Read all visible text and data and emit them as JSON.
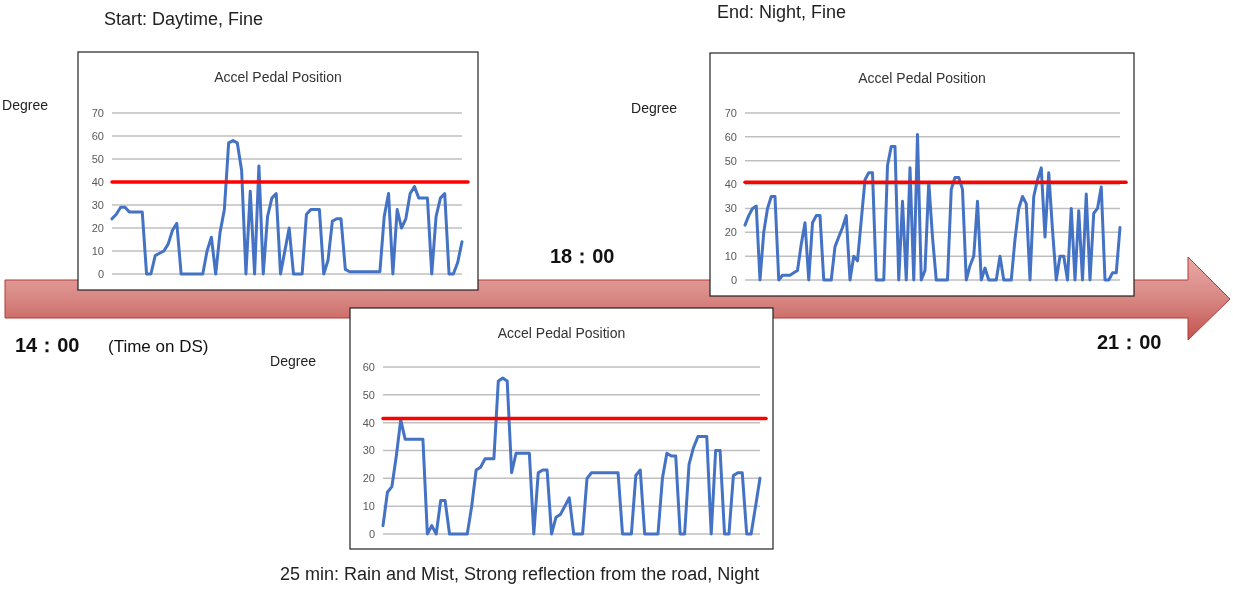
{
  "chart_data": [
    {
      "type": "line",
      "title": "Accel Pedal Position",
      "ylabel": "Degree",
      "annotations": [
        "Start: Daytime, Fine"
      ],
      "ylim": [
        0,
        70
      ],
      "yticks": [
        0,
        10,
        20,
        30,
        40,
        50,
        60,
        70
      ],
      "grid": "y",
      "tick_labels": "y",
      "line_style": "solid",
      "marker": "none",
      "categories": [
        null,
        null,
        null,
        null,
        null,
        null,
        null,
        null,
        null,
        null,
        null,
        null,
        null,
        null,
        null,
        null,
        null,
        null,
        null,
        null,
        null,
        null,
        null,
        null,
        null,
        null,
        null,
        null,
        null,
        null,
        null,
        null,
        null,
        null,
        null,
        null,
        null,
        null,
        null,
        null,
        null,
        null,
        null,
        null,
        null,
        null,
        null,
        null,
        null,
        null,
        null,
        null,
        null,
        null,
        null,
        null,
        null,
        null,
        null,
        null,
        null,
        null,
        null,
        null,
        null,
        null,
        null,
        null,
        null,
        null,
        null,
        null,
        null,
        null,
        null,
        null,
        null,
        null,
        null,
        null,
        null,
        null
      ],
      "series": [
        {
          "color": "#4472c4",
          "values": [
            24,
            26,
            29,
            29,
            27,
            27,
            27,
            27,
            0,
            0,
            8,
            9,
            10,
            13,
            19,
            22,
            0,
            0,
            0,
            0,
            0,
            0,
            10,
            16,
            0,
            18,
            28,
            57,
            58,
            57,
            45,
            0,
            36,
            0,
            47,
            0,
            25,
            33,
            35,
            0,
            10,
            20,
            0,
            0,
            0,
            26,
            28,
            28,
            28,
            0,
            6,
            23,
            24,
            24,
            2,
            1,
            1,
            1,
            1,
            1,
            1,
            1,
            1,
            25,
            35,
            0,
            28,
            20,
            24,
            35,
            38,
            33,
            33,
            33,
            0,
            25,
            33,
            35,
            0,
            0,
            5,
            14
          ]
        }
      ],
      "ref_lines": [
        {
          "axis": "y",
          "value": 40,
          "color": "#ff0000"
        }
      ]
    },
    {
      "type": "line",
      "title": "Accel Pedal Position",
      "ylabel": "Degree",
      "annotations": [
        "End: Night, Fine"
      ],
      "ylim": [
        0,
        70
      ],
      "yticks": [
        0,
        10,
        20,
        30,
        40,
        50,
        60,
        70
      ],
      "grid": "y",
      "tick_labels": "y",
      "line_style": "solid",
      "marker": "none",
      "categories": [
        null,
        null,
        null,
        null,
        null,
        null,
        null,
        null,
        null,
        null,
        null,
        null,
        null,
        null,
        null,
        null,
        null,
        null,
        null,
        null,
        null,
        null,
        null,
        null,
        null,
        null,
        null,
        null,
        null,
        null,
        null,
        null,
        null,
        null,
        null,
        null,
        null,
        null,
        null,
        null,
        null,
        null,
        null,
        null,
        null,
        null,
        null,
        null,
        null,
        null,
        null,
        null,
        null,
        null,
        null,
        null,
        null,
        null,
        null,
        null,
        null,
        null,
        null,
        null,
        null,
        null,
        null,
        null,
        null,
        null,
        null,
        null,
        null,
        null,
        null,
        null,
        null,
        null,
        null,
        null,
        null,
        null,
        null,
        null,
        null,
        null,
        null,
        null,
        null,
        null,
        null,
        null,
        null,
        null,
        null,
        null,
        null,
        null,
        null,
        null,
        null
      ],
      "series": [
        {
          "color": "#4472c4",
          "values": [
            23,
            27,
            30,
            31,
            0,
            20,
            30,
            35,
            35,
            0,
            2,
            2,
            2,
            3,
            4,
            15,
            24,
            0,
            24,
            27,
            27,
            0,
            0,
            0,
            14,
            18,
            22,
            27,
            0,
            10,
            8,
            25,
            42,
            45,
            45,
            0,
            0,
            0,
            48,
            56,
            56,
            0,
            33,
            0,
            47,
            0,
            61,
            0,
            4,
            41,
            18,
            0,
            0,
            0,
            0,
            38,
            43,
            43,
            38,
            0,
            6,
            10,
            33,
            0,
            5,
            0,
            0,
            0,
            10,
            0,
            0,
            0,
            17,
            30,
            35,
            32,
            0,
            35,
            42,
            47,
            18,
            45,
            21,
            0,
            10,
            10,
            0,
            30,
            0,
            29,
            0,
            36,
            0,
            28,
            30,
            39,
            0,
            0,
            3,
            3,
            22
          ]
        }
      ],
      "ref_lines": [
        {
          "axis": "y",
          "value": 41,
          "color": "#ff0000"
        }
      ]
    },
    {
      "type": "line",
      "title": "Accel Pedal Position",
      "ylabel": "Degree",
      "annotations": [
        "25 min: Rain and Mist, Strong reflection from the road, Night"
      ],
      "ylim": [
        0,
        60
      ],
      "yticks": [
        0,
        10,
        20,
        30,
        40,
        50,
        60
      ],
      "grid": "y",
      "tick_labels": "y",
      "line_style": "solid",
      "marker": "none",
      "categories": [
        null,
        null,
        null,
        null,
        null,
        null,
        null,
        null,
        null,
        null,
        null,
        null,
        null,
        null,
        null,
        null,
        null,
        null,
        null,
        null,
        null,
        null,
        null,
        null,
        null,
        null,
        null,
        null,
        null,
        null,
        null,
        null,
        null,
        null,
        null,
        null,
        null,
        null,
        null,
        null,
        null,
        null,
        null,
        null,
        null,
        null,
        null,
        null,
        null,
        null,
        null,
        null,
        null,
        null,
        null,
        null,
        null,
        null,
        null,
        null,
        null,
        null,
        null,
        null,
        null,
        null,
        null,
        null,
        null,
        null,
        null,
        null,
        null,
        null,
        null,
        null,
        null,
        null,
        null,
        null,
        null,
        null,
        null,
        null,
        null,
        null
      ],
      "series": [
        {
          "color": "#4472c4",
          "values": [
            3,
            15,
            17,
            28,
            41,
            34,
            34,
            34,
            34,
            34,
            0,
            3,
            0,
            12,
            12,
            0,
            0,
            0,
            0,
            0,
            10,
            23,
            24,
            27,
            27,
            27,
            55,
            56,
            55,
            22,
            29,
            29,
            29,
            29,
            0,
            22,
            23,
            23,
            0,
            6,
            7,
            10,
            13,
            0,
            0,
            0,
            20,
            22,
            22,
            22,
            22,
            22,
            22,
            22,
            0,
            0,
            0,
            21,
            23,
            0,
            0,
            0,
            0,
            20,
            29,
            28,
            28,
            0,
            0,
            25,
            31,
            35,
            35,
            35,
            0,
            30,
            30,
            0,
            0,
            21,
            22,
            22,
            0,
            0,
            10,
            20
          ]
        }
      ],
      "ref_lines": [
        {
          "axis": "y",
          "value": 41.5,
          "color": "#ff0000"
        }
      ]
    },
    {
      "type": "other",
      "annotations": [
        "14：00",
        "(Time on DS)",
        "18：00",
        "21：00"
      ]
    }
  ]
}
